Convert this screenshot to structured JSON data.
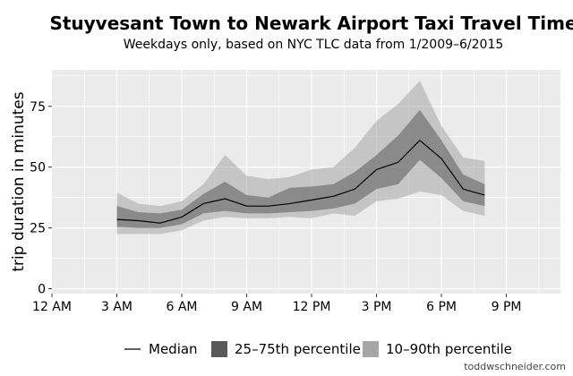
{
  "chart_data": {
    "type": "area",
    "title": "Stuyvesant Town to Newark Airport Taxi Travel Time",
    "subtitle": "Weekdays only, based on NYC TLC data from 1/2009–6/2015",
    "xlabel": "",
    "ylabel": "trip duration in minutes",
    "xlim": [
      0,
      23.5
    ],
    "ylim": [
      -2,
      90
    ],
    "x_ticks": [
      0,
      3,
      6,
      9,
      12,
      15,
      18,
      21
    ],
    "x_tick_labels": [
      "12 AM",
      "3 AM",
      "6 AM",
      "9 AM",
      "12 PM",
      "3 PM",
      "6 PM",
      "9 PM"
    ],
    "y_ticks": [
      0,
      25,
      50,
      75
    ],
    "y_tick_labels": [
      "0",
      "25",
      "50",
      "75"
    ],
    "grid": true,
    "legend_position": "bottom",
    "x": [
      3,
      4,
      5,
      6,
      7,
      8,
      9,
      10,
      11,
      12,
      13,
      14,
      15,
      16,
      17,
      18,
      19,
      20
    ],
    "series": [
      {
        "name": "Median",
        "type": "line",
        "color": "#000000",
        "values": [
          28.5,
          28,
          27,
          29.5,
          35,
          37,
          34,
          34,
          35,
          36.5,
          38,
          41,
          49,
          52,
          61,
          53.5,
          41,
          38.5
        ]
      },
      {
        "name": "25–75th percentile",
        "type": "band",
        "color": "#595959",
        "lower": [
          25.5,
          25,
          25,
          26.5,
          31,
          32,
          31,
          31,
          31.5,
          32,
          33,
          35,
          41,
          43,
          53,
          45.5,
          36,
          34
        ],
        "upper": [
          34,
          31.5,
          31,
          32.5,
          39,
          44,
          38.5,
          37.5,
          41.5,
          42,
          43,
          48,
          55,
          63,
          73.5,
          61,
          47,
          43
        ]
      },
      {
        "name": "10–90th percentile",
        "type": "band",
        "color": "#a6a6a6",
        "lower": [
          22.5,
          22.5,
          22.5,
          24,
          28,
          29.5,
          29,
          29,
          29.5,
          29,
          31,
          30,
          36,
          37,
          40,
          38.5,
          32,
          30
        ],
        "upper": [
          39.5,
          35,
          34,
          36,
          43,
          55,
          46.5,
          45,
          46,
          49,
          50,
          58,
          69,
          76,
          85.5,
          67,
          54,
          52.5
        ]
      }
    ]
  },
  "credit": "toddwschneider.com"
}
